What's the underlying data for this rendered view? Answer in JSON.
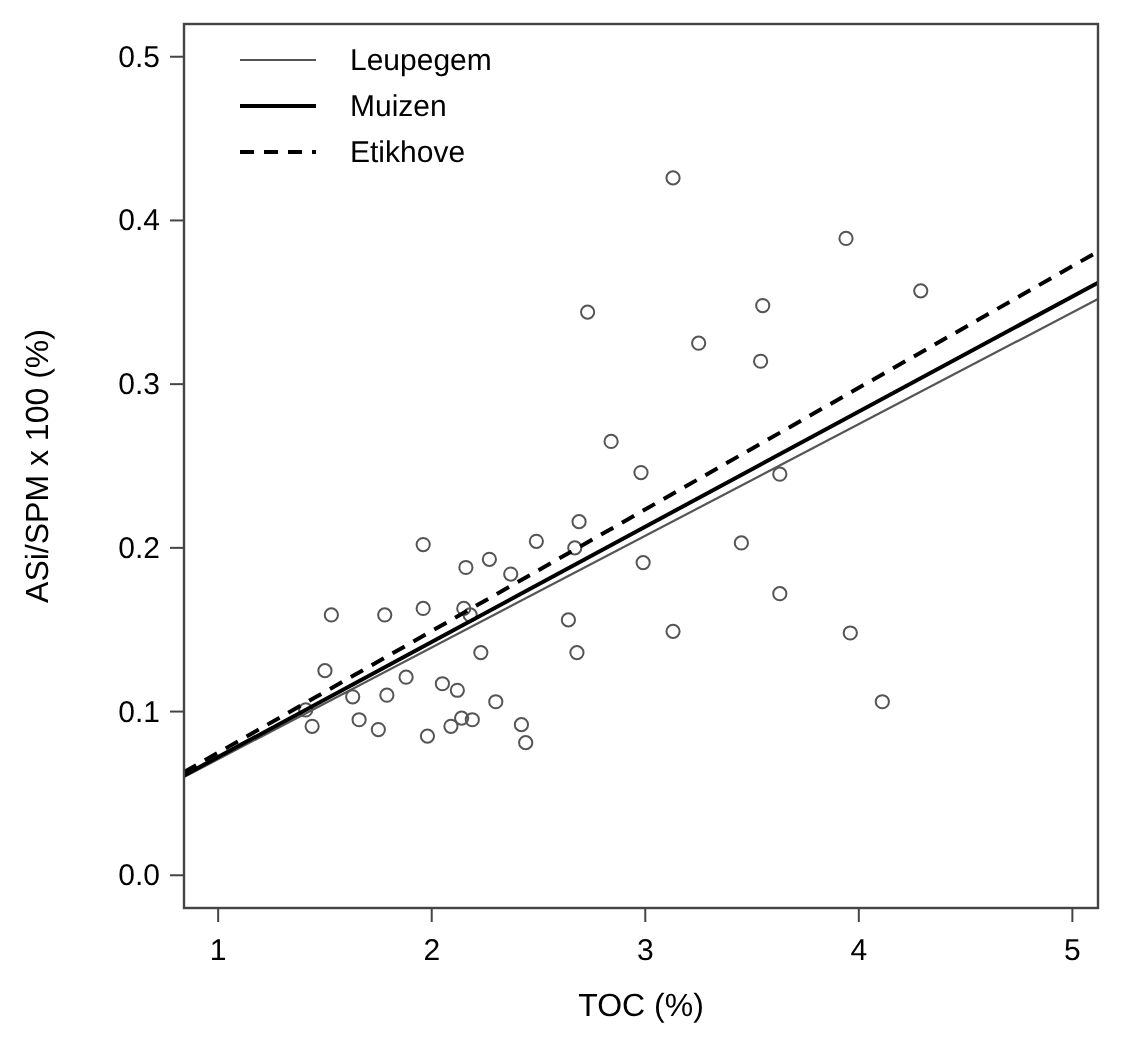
{
  "chart_data": {
    "type": "scatter",
    "xlabel": "TOC (%)",
    "ylabel": "ASi/SPM x 100 (%)",
    "xlim": [
      0.84,
      5.12
    ],
    "ylim": [
      -0.02,
      0.52
    ],
    "xticks": [
      1,
      2,
      3,
      4,
      5
    ],
    "yticks": [
      {
        "value": 0,
        "label": "0.0"
      },
      0.1,
      0.2,
      0.3,
      0.4,
      0.5
    ],
    "grid": false,
    "legend": "top left",
    "series": [
      {
        "color": "#555555",
        "marker": "circle",
        "x": [
          1.5,
          1.53,
          1.41,
          1.44,
          1.63,
          1.66,
          1.75,
          1.78,
          1.79,
          1.88,
          1.96,
          1.96,
          1.98,
          2.05,
          2.09,
          2.12,
          2.14,
          2.15,
          2.16,
          2.18,
          2.19,
          2.23,
          2.27,
          2.3,
          2.37,
          2.42,
          2.44,
          2.49,
          2.64,
          2.67,
          2.68,
          2.69,
          2.99,
          3.13,
          3.45,
          3.63,
          3.96,
          4.11,
          3.13,
          2.73,
          3.94,
          4.29,
          3.55,
          3.25,
          3.54,
          2.84,
          2.98,
          3.63
        ],
        "values": [
          0.125,
          0.159,
          0.101,
          0.091,
          0.109,
          0.095,
          0.089,
          0.159,
          0.11,
          0.121,
          0.202,
          0.163,
          0.085,
          0.117,
          0.091,
          0.113,
          0.096,
          0.163,
          0.188,
          0.159,
          0.095,
          0.136,
          0.193,
          0.106,
          0.184,
          0.092,
          0.081,
          0.204,
          0.156,
          0.2,
          0.136,
          0.216,
          0.191,
          0.149,
          0.203,
          0.172,
          0.148,
          0.106,
          0.426,
          0.344,
          0.389,
          0.357,
          0.348,
          0.325,
          0.314,
          0.265,
          0.246,
          0.245
        ]
      },
      {
        "type": "line",
        "name": "Leupegem",
        "color": "#555555",
        "line_style": "solid",
        "x": [
          0.84,
          5.12
        ],
        "values": [
          0.06,
          0.352
        ]
      },
      {
        "type": "line",
        "name": "Muizen",
        "color": "#000000",
        "line_style": "solid",
        "x": [
          0.84,
          5.12
        ],
        "values": [
          0.061,
          0.362
        ]
      },
      {
        "type": "line",
        "name": "Etikhove",
        "color": "#000000",
        "line_style": "dashed",
        "x": [
          0.84,
          5.12
        ],
        "values": [
          0.063,
          0.381
        ]
      }
    ]
  }
}
